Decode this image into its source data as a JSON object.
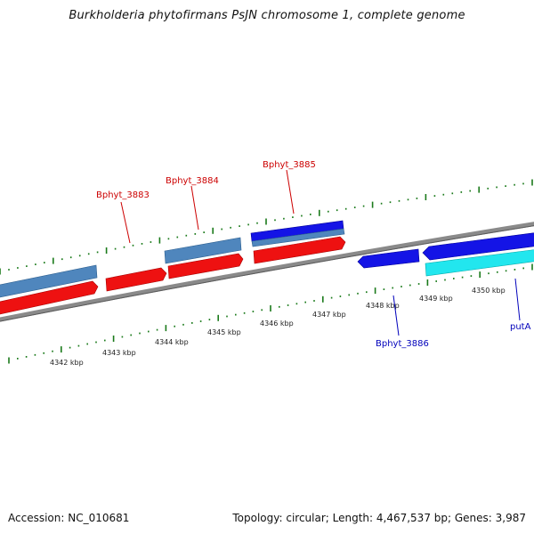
{
  "header": {
    "title": "Burkholderia phytofirmans PsJN chromosome 1, complete genome"
  },
  "footer": {
    "accession": "Accession: NC_010681",
    "summary": "Topology: circular; Length: 4,467,537 bp; Genes: 3,987"
  },
  "colors": {
    "forward_cds": "#ee1111",
    "forward_gene": "#4f86bd",
    "reverse_cds": "#1414e6",
    "reverse_other": "#22e6ee",
    "backbone": "#8a8a8a",
    "ticks": "#1a7a1a",
    "forward_label": "#cc0000",
    "reverse_label": "#0000bb"
  },
  "scale": {
    "tick_labels": [
      "4342 kbp",
      "4343 kbp",
      "4344 kbp",
      "4345 kbp",
      "4346 kbp",
      "4347 kbp",
      "4348 kbp",
      "4349 kbp",
      "4350 kbp"
    ]
  },
  "genes": {
    "forward_labels": [
      "Bphyt_3883",
      "Bphyt_3884",
      "Bphyt_3885"
    ],
    "reverse_labels": [
      "Bphyt_3886",
      "putA"
    ]
  }
}
